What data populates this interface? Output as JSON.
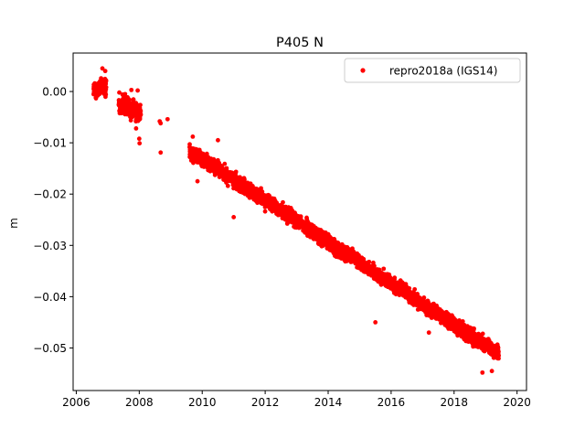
{
  "chart_data": {
    "type": "scatter",
    "title": "P405 N",
    "xlabel": "",
    "ylabel": "m",
    "xlim": [
      2005.9,
      2020.3
    ],
    "ylim": [
      -0.0583,
      0.0075
    ],
    "xticks": [
      2006,
      2008,
      2010,
      2012,
      2014,
      2016,
      2018,
      2020
    ],
    "yticks": [
      0.0,
      -0.01,
      -0.02,
      -0.03,
      -0.04,
      -0.05
    ],
    "ytick_labels": [
      "0.00",
      "−0.01",
      "−0.02",
      "−0.03",
      "−0.04",
      "−0.05"
    ],
    "grid": false,
    "legend_position": "top-right",
    "series": [
      {
        "name": "repro2018a (IGS14)",
        "color": "#ff0000",
        "marker": "circle",
        "segments": [
          {
            "x_start": 2006.55,
            "x_end": 2006.95,
            "y_start": 0.0003,
            "y_end": 0.001,
            "noise": 0.0013
          },
          {
            "x_start": 2007.35,
            "x_end": 2008.05,
            "y_start": -0.0022,
            "y_end": -0.0045,
            "noise": 0.0015
          },
          {
            "x_start": 2009.6,
            "x_end": 2019.42,
            "y_start": -0.0115,
            "y_end": -0.0512,
            "noise": 0.0011
          }
        ],
        "extra_points": [
          [
            2006.83,
            0.0045
          ],
          [
            2006.92,
            0.004
          ],
          [
            2006.62,
            -0.0012
          ],
          [
            2007.55,
            -0.0005
          ],
          [
            2007.75,
            0.0003
          ],
          [
            2007.9,
            -0.0072
          ],
          [
            2008.0,
            -0.0092
          ],
          [
            2008.01,
            -0.0101
          ],
          [
            2007.95,
            0.0002
          ],
          [
            2008.65,
            -0.0058
          ],
          [
            2008.68,
            -0.0062
          ],
          [
            2008.68,
            -0.0119
          ],
          [
            2008.9,
            -0.0054
          ],
          [
            2009.7,
            -0.0088
          ],
          [
            2009.85,
            -0.0175
          ],
          [
            2010.5,
            -0.0095
          ],
          [
            2011.0,
            -0.0245
          ],
          [
            2015.5,
            -0.045
          ],
          [
            2017.2,
            -0.047
          ],
          [
            2018.9,
            -0.0548
          ],
          [
            2019.2,
            -0.0545
          ]
        ]
      }
    ]
  }
}
